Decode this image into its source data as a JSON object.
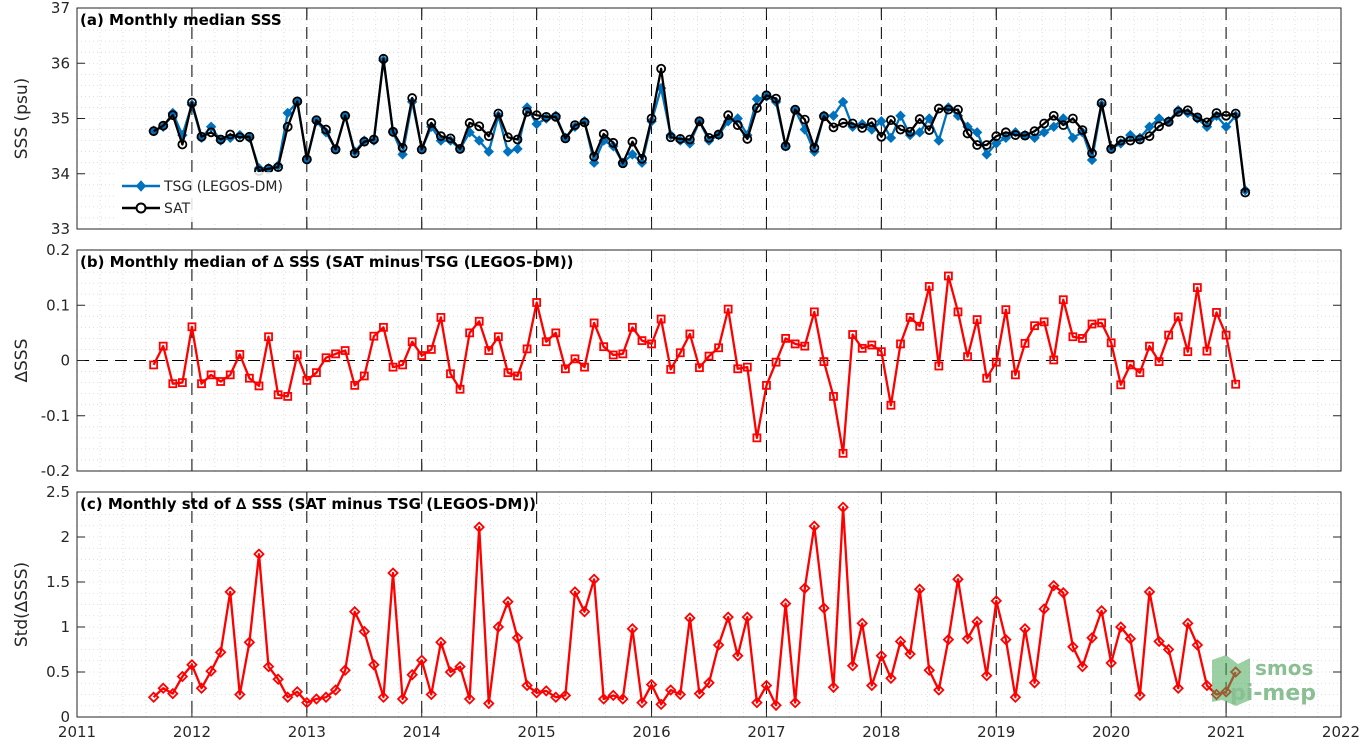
{
  "chart_data": [
    {
      "panel": "a",
      "type": "line",
      "title": "(a) Monthly median SSS",
      "ylabel": "SSS (psu)",
      "ylim": [
        33,
        37
      ],
      "yticks": [
        "33",
        "34",
        "35",
        "36",
        "37"
      ],
      "xlim": [
        2011,
        2022
      ],
      "legend": "bottom-left",
      "grid": "minor-dotted",
      "x_start": 2011.667,
      "x_step": 0.08333,
      "series": [
        {
          "name": "TSG (LEGOS-DM)",
          "color": "#0072BD",
          "marker": "diamond",
          "values": [
            34.78,
            34.85,
            35.1,
            34.7,
            35.25,
            34.65,
            34.85,
            34.6,
            34.65,
            34.7,
            34.65,
            34.1,
            34.1,
            34.15,
            35.1,
            35.3,
            34.25,
            34.95,
            34.75,
            34.45,
            35.05,
            34.4,
            34.6,
            34.6,
            36.05,
            34.75,
            34.35,
            35.3,
            34.45,
            34.85,
            34.6,
            34.6,
            34.45,
            34.75,
            34.6,
            34.4,
            35.05,
            34.4,
            34.45,
            35.2,
            34.9,
            35.0,
            35.05,
            34.65,
            34.85,
            34.95,
            34.2,
            34.6,
            34.5,
            34.2,
            34.35,
            34.2,
            34.95,
            35.55,
            34.7,
            34.6,
            34.55,
            34.95,
            34.6,
            34.7,
            34.95,
            35.0,
            34.7,
            35.35,
            35.4,
            35.3,
            34.5,
            35.15,
            34.8,
            34.4,
            35.05,
            35.05,
            35.3,
            34.85,
            34.9,
            34.8,
            34.95,
            34.65,
            35.05,
            34.7,
            34.75,
            35.0,
            34.6,
            35.2,
            35.05,
            34.85,
            34.75,
            34.35,
            34.55,
            34.65,
            34.75,
            34.7,
            34.65,
            34.75,
            34.85,
            35.0,
            34.65,
            34.75,
            34.25,
            35.25,
            34.45,
            34.55,
            34.7,
            34.65,
            34.85,
            35.0,
            34.95,
            35.15,
            35.1,
            35.0,
            34.85,
            35.05,
            34.85,
            35.05,
            33.7
          ]
        },
        {
          "name": "SAT",
          "color": "#000000",
          "marker": "circle",
          "values": [
            34.77,
            34.87,
            35.06,
            34.53,
            35.29,
            34.67,
            34.75,
            34.62,
            34.71,
            34.66,
            34.67,
            34.05,
            34.09,
            34.12,
            34.85,
            35.31,
            34.26,
            34.97,
            34.8,
            34.44,
            35.05,
            34.37,
            34.58,
            34.62,
            36.08,
            34.76,
            34.47,
            35.37,
            34.44,
            34.92,
            34.68,
            34.64,
            34.45,
            34.92,
            34.86,
            34.68,
            35.09,
            34.66,
            34.62,
            35.12,
            35.06,
            35.03,
            35.03,
            34.64,
            34.88,
            34.93,
            34.31,
            34.72,
            34.56,
            34.19,
            34.58,
            34.27,
            35.0,
            35.9,
            34.66,
            34.63,
            34.62,
            34.95,
            34.65,
            34.71,
            35.06,
            34.88,
            34.63,
            35.19,
            35.42,
            35.36,
            34.5,
            35.16,
            34.98,
            34.47,
            35.04,
            34.84,
            34.92,
            34.91,
            34.83,
            34.93,
            34.67,
            34.97,
            34.8,
            34.76,
            34.99,
            34.79,
            35.18,
            35.16,
            35.16,
            34.73,
            34.52,
            34.52,
            34.68,
            34.75,
            34.7,
            34.69,
            34.77,
            34.91,
            35.05,
            34.88,
            35.0,
            34.79,
            34.37,
            35.28,
            34.45,
            34.6,
            34.6,
            34.62,
            34.68,
            34.86,
            34.94,
            35.12,
            35.15,
            35.02,
            34.93,
            35.1,
            35.05,
            35.09,
            33.66
          ]
        }
      ]
    },
    {
      "panel": "b",
      "type": "line",
      "title": "(b) Monthly median of ∆ SSS (SAT minus TSG (LEGOS-DM))",
      "ylabel": "∆SSS",
      "ylim": [
        -0.2,
        0.2
      ],
      "yticks": [
        "-0.2",
        "-0.1",
        "0",
        "0.1",
        "0.2"
      ],
      "xlim": [
        2011,
        2022
      ],
      "grid": "minor-dotted",
      "reference_line": 0,
      "x_start": 2011.667,
      "x_step": 0.08333,
      "series": [
        {
          "color": "#FF0000",
          "marker": "square",
          "values": [
            -0.008,
            0.026,
            -0.042,
            -0.04,
            0.061,
            -0.042,
            -0.026,
            -0.038,
            -0.026,
            0.011,
            -0.032,
            -0.046,
            0.043,
            -0.062,
            -0.065,
            0.01,
            -0.036,
            -0.022,
            0.005,
            0.012,
            0.018,
            -0.045,
            -0.028,
            0.044,
            0.06,
            -0.012,
            -0.008,
            0.034,
            0.009,
            0.02,
            0.078,
            -0.024,
            -0.052,
            0.05,
            0.071,
            0.018,
            0.043,
            -0.022,
            -0.028,
            0.021,
            0.105,
            0.034,
            0.05,
            -0.015,
            0.003,
            -0.012,
            0.068,
            0.025,
            0.01,
            0.012,
            0.06,
            0.036,
            0.03,
            0.075,
            -0.016,
            0.014,
            0.048,
            -0.013,
            0.008,
            0.023,
            0.093,
            -0.015,
            -0.012,
            -0.14,
            -0.045,
            -0.003,
            0.04,
            0.03,
            0.026,
            0.088,
            -0.002,
            -0.065,
            -0.168,
            0.047,
            0.022,
            0.028,
            0.016,
            -0.081,
            0.03,
            0.078,
            0.062,
            0.134,
            -0.01,
            0.153,
            0.088,
            0.007,
            0.074,
            -0.032,
            -0.003,
            0.092,
            -0.026,
            0.031,
            0.063,
            0.07,
            0.001,
            0.11,
            0.043,
            0.04,
            0.066,
            0.068,
            0.032,
            -0.044,
            -0.008,
            -0.022,
            0.026,
            -0.002,
            0.046,
            0.079,
            0.016,
            0.132,
            0.017,
            0.087,
            0.046,
            -0.043
          ]
        }
      ]
    },
    {
      "panel": "c",
      "type": "line",
      "title": "(c) Monthly std of ∆ SSS (SAT minus TSG (LEGOS-DM))",
      "ylabel": "Std(∆SSS)",
      "ylim": [
        0,
        2.5
      ],
      "yticks": [
        "0",
        "0.5",
        "1",
        "1.5",
        "2",
        "2.5"
      ],
      "xlim": [
        2011,
        2022
      ],
      "xticks": [
        "2011",
        "2012",
        "2013",
        "2014",
        "2015",
        "2016",
        "2017",
        "2018",
        "2019",
        "2020",
        "2021",
        "2022"
      ],
      "grid": "minor-dotted",
      "x_start": 2011.667,
      "x_step": 0.08333,
      "series": [
        {
          "color": "#FF0000",
          "marker": "diamond",
          "values": [
            0.22,
            0.32,
            0.26,
            0.45,
            0.58,
            0.32,
            0.51,
            0.72,
            1.39,
            0.25,
            0.83,
            1.81,
            0.56,
            0.42,
            0.22,
            0.28,
            0.16,
            0.2,
            0.22,
            0.3,
            0.52,
            1.17,
            0.95,
            0.58,
            0.22,
            1.6,
            0.2,
            0.47,
            0.63,
            0.25,
            0.83,
            0.5,
            0.56,
            0.2,
            2.11,
            0.15,
            1.0,
            1.28,
            0.88,
            0.35,
            0.27,
            0.29,
            0.22,
            0.24,
            1.39,
            1.17,
            1.53,
            0.2,
            0.24,
            0.2,
            0.98,
            0.16,
            0.36,
            0.14,
            0.3,
            0.25,
            1.1,
            0.26,
            0.38,
            0.8,
            1.11,
            0.68,
            1.11,
            0.16,
            0.35,
            0.13,
            1.26,
            0.16,
            1.43,
            2.12,
            1.21,
            0.33,
            2.33,
            0.57,
            1.04,
            0.35,
            0.68,
            0.43,
            0.84,
            0.7,
            1.42,
            0.52,
            0.3,
            0.86,
            1.53,
            0.87,
            1.06,
            0.46,
            1.29,
            0.86,
            0.22,
            0.98,
            0.38,
            1.2,
            1.46,
            1.38,
            0.78,
            0.56,
            0.88,
            1.18,
            0.6,
            1.0,
            0.87,
            0.24,
            1.39,
            0.84,
            0.75,
            0.32,
            1.04,
            0.8,
            0.35,
            0.25,
            0.28,
            0.5
          ]
        }
      ]
    }
  ],
  "logo": {
    "line1": "smos",
    "line2": "pi-mep"
  }
}
